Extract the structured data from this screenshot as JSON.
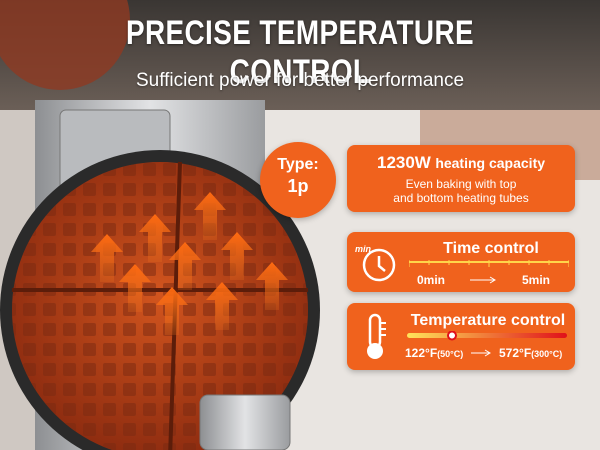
{
  "header": {
    "title": "PRECISE TEMPERATURE CONTROL",
    "subtitle": "Sufficient power for better performance"
  },
  "badge": {
    "label": "Type:",
    "value": "1p"
  },
  "cards": [
    {
      "title": "1230W",
      "title_suffix": "heating capacity",
      "lines": [
        "Even baking with top",
        "and bottom heating tubes"
      ]
    },
    {
      "icon_label": "min",
      "title": "Time control",
      "from": "0min",
      "to": "5min"
    },
    {
      "title": "Temperature control",
      "from": "122°F",
      "from_note": "(50°C)",
      "to": "572°F",
      "to_note": "(300°C)"
    }
  ]
}
